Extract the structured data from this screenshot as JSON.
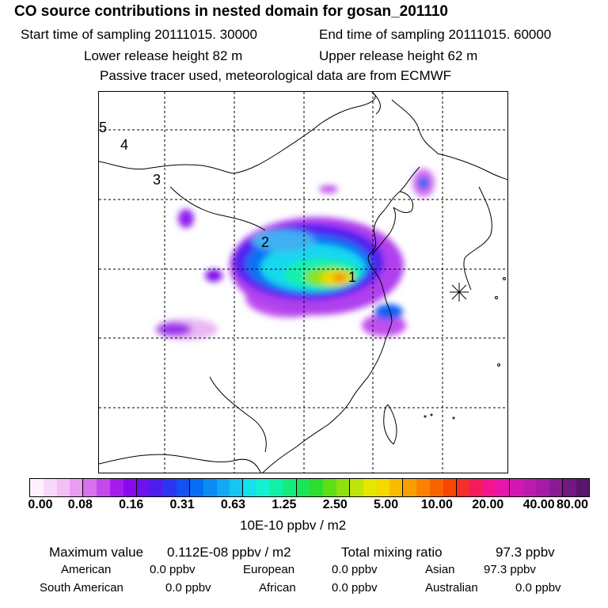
{
  "header": {
    "title": "CO  source contributions in nested domain for gosan_201110",
    "start_time": "Start time of sampling 20111015. 30000",
    "end_time": "End time of sampling 20111015. 60000",
    "lower_release": "Lower release height   82 m",
    "upper_release": "Upper release height   62 m",
    "tracer_note": "Passive tracer used, meteorological data are from ECMWF"
  },
  "map": {
    "region_labels": [
      "1",
      "2",
      "3",
      "4",
      "5"
    ],
    "receptor_marker": "asterisk-icon"
  },
  "colorbar": {
    "tick_labels": [
      "0.00",
      "0.08",
      "0.16",
      "0.31",
      "0.63",
      "1.25",
      "2.50",
      "5.00",
      "10.00",
      "20.00",
      "40.00",
      "80.00"
    ],
    "units": "10E-10 ppbv / m2",
    "colors": [
      "#fdf2fd",
      "#f8d8fa",
      "#f3bff6",
      "#ea9cf1",
      "#d771ee",
      "#c24aec",
      "#a61deb",
      "#8a08ec",
      "#6c12ee",
      "#4b1ff0",
      "#2c35f2",
      "#1451f3",
      "#066ef4",
      "#0a8cf4",
      "#12a9f4",
      "#15c6f1",
      "#15e1ea",
      "#12f1d2",
      "#10f0a8",
      "#14ec7e",
      "#19e557",
      "#2ede2c",
      "#5fde15",
      "#8fe10e",
      "#bfe508",
      "#e5e602",
      "#f4d800",
      "#f8bd00",
      "#f9a000",
      "#f98200",
      "#f86300",
      "#f84700",
      "#f72d2a",
      "#f51b5d",
      "#f31590",
      "#e615ac",
      "#d218b4",
      "#bd1bb0",
      "#a51ba6",
      "#8b1a95",
      "#731881",
      "#5a146b"
    ]
  },
  "stats": {
    "max_value_label": "Maximum value",
    "max_value": "0.112E-08 ppbv / m2",
    "total_label": "Total mixing ratio",
    "total_value": "97.3 ppbv",
    "regions": [
      {
        "name": "American",
        "value": "0.0 ppbv"
      },
      {
        "name": "European",
        "value": "0.0 ppbv"
      },
      {
        "name": "Asian",
        "value": "97.3 ppbv"
      },
      {
        "name": "South American",
        "value": "0.0 ppbv"
      },
      {
        "name": "African",
        "value": "0.0 ppbv"
      },
      {
        "name": "Australian",
        "value": "0.0 ppbv"
      }
    ]
  }
}
